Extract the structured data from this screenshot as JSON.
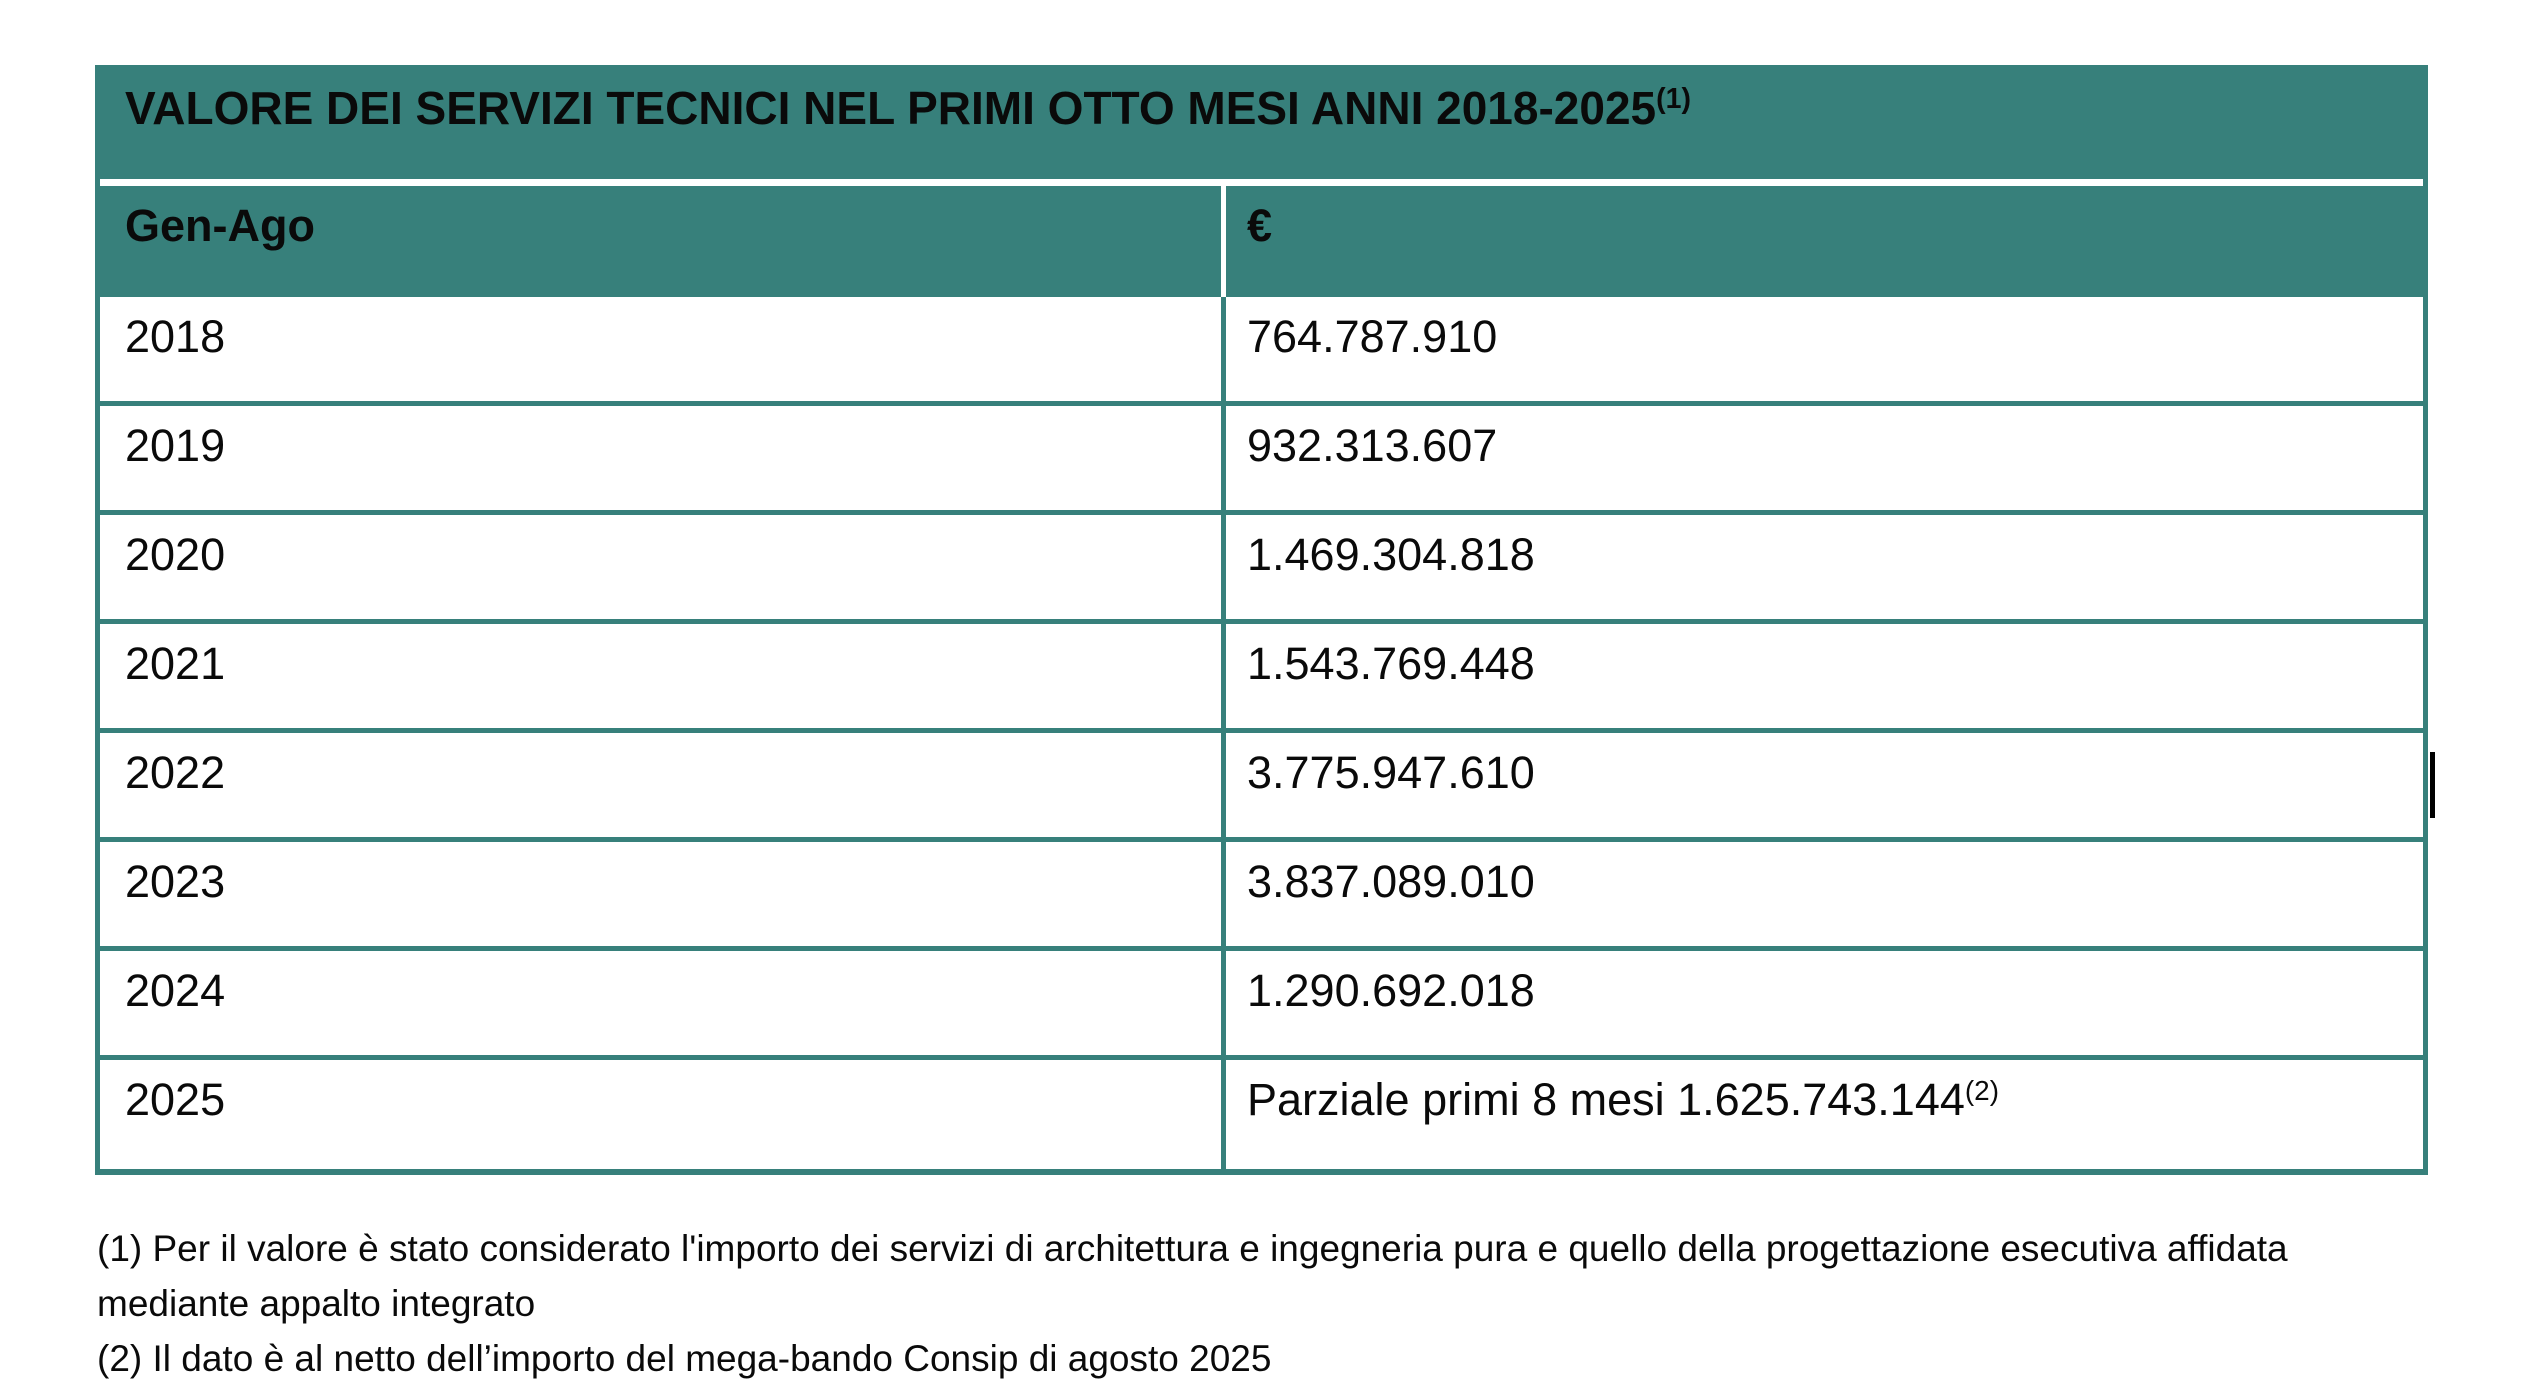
{
  "colors": {
    "teal": "#37807b",
    "text": "#0a0a0a",
    "page_bg": "#ffffff"
  },
  "table": {
    "title": "VALORE DEI SERVIZI TECNICI NEL PRIMI OTTO MESI ANNI 2018-2025",
    "title_sup": "(1)",
    "columns": {
      "period": "Gen-Ago",
      "amount": "€"
    },
    "rows": [
      {
        "year": "2018",
        "value": "764.787.910",
        "value_sup": ""
      },
      {
        "year": "2019",
        "value": "932.313.607",
        "value_sup": ""
      },
      {
        "year": "2020",
        "value": "1.469.304.818",
        "value_sup": ""
      },
      {
        "year": "2021",
        "value": "1.543.769.448",
        "value_sup": ""
      },
      {
        "year": "2022",
        "value": "3.775.947.610",
        "value_sup": ""
      },
      {
        "year": "2023",
        "value": "3.837.089.010",
        "value_sup": ""
      },
      {
        "year": "2024",
        "value": "1.290.692.018",
        "value_sup": ""
      },
      {
        "year": "2025",
        "value": "Parziale primi 8 mesi 1.625.743.144",
        "value_sup": "(2)"
      }
    ]
  },
  "footnotes": {
    "lines": [
      "(1) Per il valore è stato considerato l'importo dei servizi di architettura e ingegneria pura e quello della progettazione esecutiva affidata",
      "mediante appalto integrato",
      "(2) Il dato è al netto dell’importo del mega-bando Consip di agosto 2025"
    ]
  }
}
